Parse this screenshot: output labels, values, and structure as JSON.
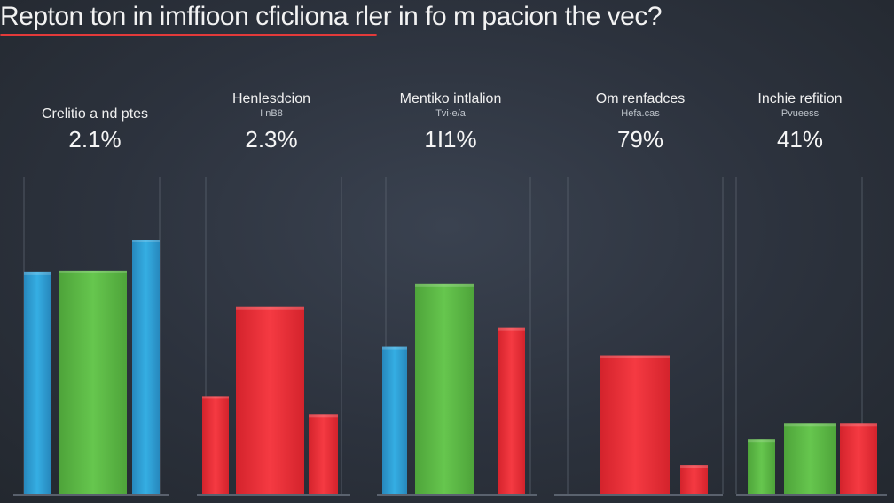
{
  "chart_data": {
    "type": "bar",
    "title": "Repton ton in imffioon cficliona rler in fo m pacion the vec?",
    "ylim": [
      0,
      300
    ],
    "grid": "vertical",
    "colors": {
      "blue": "#2e9fd6",
      "green": "#5dbb46",
      "red": "#ec2f38",
      "accent": "#e33a3a"
    },
    "groups": [
      {
        "label": "Crelitio a nd ptes",
        "sublabel": "",
        "value_label": "2.1%",
        "bars": [
          {
            "color": "blue",
            "value": 251
          },
          {
            "color": "green",
            "value": 253
          },
          {
            "color": "blue",
            "value": 288
          }
        ]
      },
      {
        "label": "Henlesdcion",
        "sublabel": "I nB8",
        "value_label": "2.3%",
        "bars": [
          {
            "color": "red",
            "value": 111
          },
          {
            "color": "red",
            "value": 212
          },
          {
            "color": "red",
            "value": 90
          }
        ]
      },
      {
        "label": "Mentiko intlalion",
        "sublabel": "Tvi·e/a",
        "value_label": "1I1%",
        "bars": [
          {
            "color": "blue",
            "value": 167
          },
          {
            "color": "green",
            "value": 238
          },
          {
            "color": "red",
            "value": 188
          }
        ]
      },
      {
        "label": "Om renfadces",
        "sublabel": "Hefa.cas",
        "value_label": "79%",
        "bars": [
          {
            "color": "red",
            "value": 157
          },
          {
            "color": "red",
            "value": 33
          }
        ]
      },
      {
        "label": "Inchie refition",
        "sublabel": "Pvueess",
        "value_label": "41%",
        "bars": [
          {
            "color": "green",
            "value": 62
          },
          {
            "color": "green",
            "value": 80
          },
          {
            "color": "red",
            "value": 80
          }
        ]
      }
    ]
  }
}
